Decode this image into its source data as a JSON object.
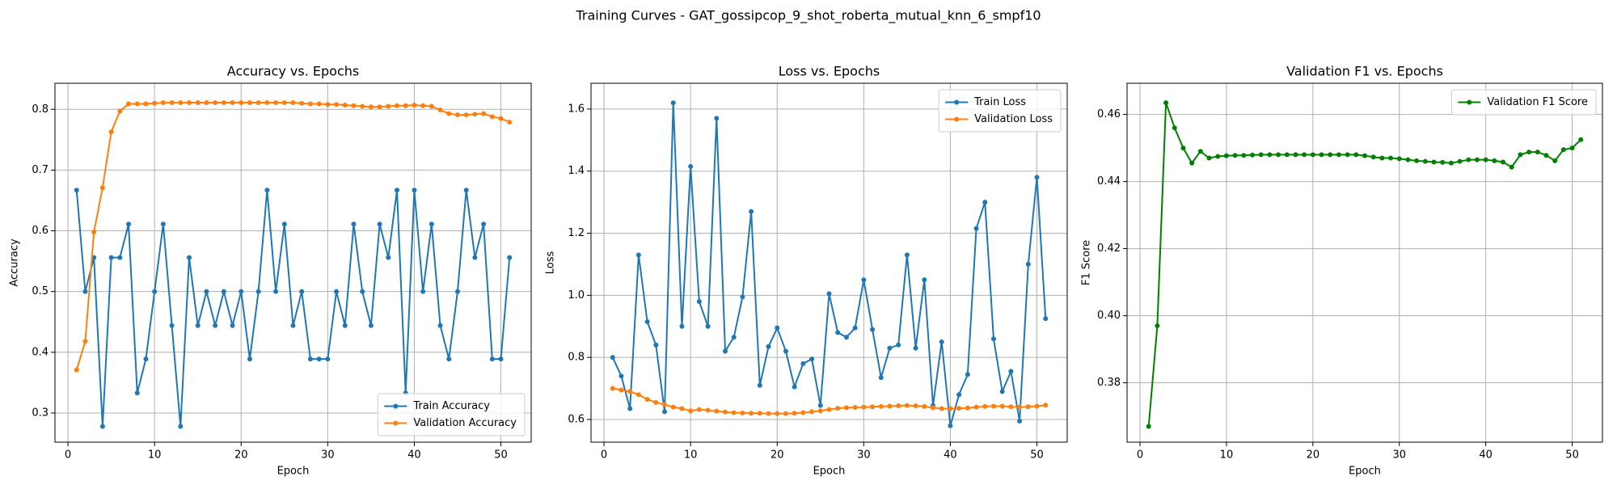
{
  "title": "Training Curves - GAT_gossipcop_9_shot_roberta_mutual_knn_6_smpf10",
  "chart_data": [
    {
      "type": "line",
      "title": "Accuracy vs. Epochs",
      "x_label": "Epoch",
      "y_label": "Accuracy",
      "x": [
        1,
        2,
        3,
        4,
        5,
        6,
        7,
        8,
        9,
        10,
        11,
        12,
        13,
        14,
        15,
        16,
        17,
        18,
        19,
        20,
        21,
        22,
        23,
        24,
        25,
        26,
        27,
        28,
        29,
        30,
        31,
        32,
        33,
        34,
        35,
        36,
        37,
        38,
        39,
        40,
        41,
        42,
        43,
        44,
        45,
        46,
        47,
        48,
        49,
        50,
        51
      ],
      "series": [
        {
          "name": "Train Accuracy",
          "color": "#1f77b4",
          "values": [
            0.667,
            0.5,
            0.556,
            0.278,
            0.556,
            0.556,
            0.611,
            0.333,
            0.389,
            0.5,
            0.611,
            0.444,
            0.278,
            0.556,
            0.444,
            0.5,
            0.444,
            0.5,
            0.444,
            0.5,
            0.389,
            0.5,
            0.667,
            0.5,
            0.611,
            0.444,
            0.5,
            0.389,
            0.389,
            0.389,
            0.5,
            0.444,
            0.611,
            0.5,
            0.444,
            0.611,
            0.556,
            0.667,
            0.333,
            0.667,
            0.5,
            0.611,
            0.444,
            0.389,
            0.5,
            0.667,
            0.556,
            0.611,
            0.389,
            0.389,
            0.556
          ]
        },
        {
          "name": "Validation Accuracy",
          "color": "#ff7f0e",
          "values": [
            0.371,
            0.418,
            0.598,
            0.671,
            0.763,
            0.797,
            0.809,
            0.809,
            0.809,
            0.81,
            0.811,
            0.811,
            0.811,
            0.811,
            0.811,
            0.811,
            0.811,
            0.811,
            0.811,
            0.811,
            0.811,
            0.811,
            0.811,
            0.811,
            0.811,
            0.811,
            0.81,
            0.809,
            0.809,
            0.808,
            0.808,
            0.807,
            0.806,
            0.805,
            0.804,
            0.804,
            0.805,
            0.806,
            0.806,
            0.807,
            0.806,
            0.805,
            0.799,
            0.793,
            0.791,
            0.791,
            0.792,
            0.793,
            0.788,
            0.785,
            0.779
          ]
        }
      ],
      "xlim": [
        -1.5,
        53.5
      ],
      "ylim": [
        0.252,
        0.843
      ],
      "xticks": [
        0,
        10,
        20,
        30,
        40,
        50
      ],
      "yticks": [
        0.3,
        0.4,
        0.5,
        0.6,
        0.7,
        0.8
      ],
      "grid": true,
      "legend": "lower right"
    },
    {
      "type": "line",
      "title": "Loss vs. Epochs",
      "x_label": "Epoch",
      "y_label": "Loss",
      "x": [
        1,
        2,
        3,
        4,
        5,
        6,
        7,
        8,
        9,
        10,
        11,
        12,
        13,
        14,
        15,
        16,
        17,
        18,
        19,
        20,
        21,
        22,
        23,
        24,
        25,
        26,
        27,
        28,
        29,
        30,
        31,
        32,
        33,
        34,
        35,
        36,
        37,
        38,
        39,
        40,
        41,
        42,
        43,
        44,
        45,
        46,
        47,
        48,
        49,
        50,
        51
      ],
      "series": [
        {
          "name": "Train Loss",
          "color": "#1f77b4",
          "values": [
            0.8,
            0.74,
            0.635,
            1.13,
            0.915,
            0.84,
            0.625,
            1.62,
            0.9,
            1.415,
            0.98,
            0.9,
            1.57,
            0.82,
            0.865,
            0.995,
            1.27,
            0.71,
            0.835,
            0.895,
            0.82,
            0.705,
            0.78,
            0.795,
            0.645,
            1.005,
            0.88,
            0.865,
            0.895,
            1.05,
            0.89,
            0.735,
            0.83,
            0.84,
            1.13,
            0.83,
            1.05,
            0.645,
            0.85,
            0.58,
            0.68,
            0.745,
            1.215,
            1.3,
            0.86,
            0.69,
            0.755,
            0.595,
            1.1,
            1.38,
            0.925
          ]
        },
        {
          "name": "Validation Loss",
          "color": "#ff7f0e",
          "values": [
            0.7,
            0.695,
            0.69,
            0.68,
            0.665,
            0.655,
            0.648,
            0.64,
            0.635,
            0.628,
            0.632,
            0.63,
            0.627,
            0.624,
            0.622,
            0.621,
            0.62,
            0.62,
            0.619,
            0.619,
            0.619,
            0.62,
            0.622,
            0.625,
            0.628,
            0.632,
            0.636,
            0.638,
            0.639,
            0.64,
            0.641,
            0.642,
            0.643,
            0.644,
            0.645,
            0.644,
            0.642,
            0.638,
            0.635,
            0.635,
            0.636,
            0.637,
            0.64,
            0.642,
            0.643,
            0.643,
            0.641,
            0.64,
            0.641,
            0.643,
            0.646
          ]
        }
      ],
      "xlim": [
        -1.5,
        53.5
      ],
      "ylim": [
        0.527,
        1.683
      ],
      "xticks": [
        0,
        10,
        20,
        30,
        40,
        50
      ],
      "yticks": [
        0.6,
        0.8,
        {
          "value": 1,
          "label": "1.0"
        },
        1.2,
        1.4,
        1.6
      ],
      "grid": true,
      "legend": "upper right"
    },
    {
      "type": "line",
      "title": "Validation F1 vs. Epochs",
      "x_label": "Epoch",
      "y_label": "F1 Score",
      "x": [
        1,
        2,
        3,
        4,
        5,
        6,
        7,
        8,
        9,
        10,
        11,
        12,
        13,
        14,
        15,
        16,
        17,
        18,
        19,
        20,
        21,
        22,
        23,
        24,
        25,
        26,
        27,
        28,
        29,
        30,
        31,
        32,
        33,
        34,
        35,
        36,
        37,
        38,
        39,
        40,
        41,
        42,
        43,
        44,
        45,
        46,
        47,
        48,
        49,
        50,
        51
      ],
      "series": [
        {
          "name": "Validation F1 Score",
          "color": "#008000",
          "values": [
            0.367,
            0.397,
            0.4635,
            0.456,
            0.45,
            0.4455,
            0.449,
            0.447,
            0.4475,
            0.4477,
            0.4478,
            0.4478,
            0.4479,
            0.448,
            0.448,
            0.448,
            0.448,
            0.448,
            0.448,
            0.448,
            0.448,
            0.448,
            0.448,
            0.448,
            0.448,
            0.4477,
            0.4473,
            0.447,
            0.447,
            0.4468,
            0.4465,
            0.4462,
            0.446,
            0.4458,
            0.4457,
            0.4455,
            0.446,
            0.4465,
            0.4465,
            0.4465,
            0.4462,
            0.4458,
            0.4443,
            0.448,
            0.4488,
            0.4488,
            0.4478,
            0.4462,
            0.4495,
            0.45,
            0.4525
          ]
        }
      ],
      "xlim": [
        -1.5,
        53.5
      ],
      "ylim": [
        0.3623,
        0.4693
      ],
      "xticks": [
        0,
        10,
        20,
        30,
        40,
        50
      ],
      "yticks": [
        0.38,
        {
          "value": 0.4,
          "label": "0.40"
        },
        0.42,
        0.44,
        0.46
      ],
      "grid": true,
      "legend": "upper right"
    }
  ]
}
